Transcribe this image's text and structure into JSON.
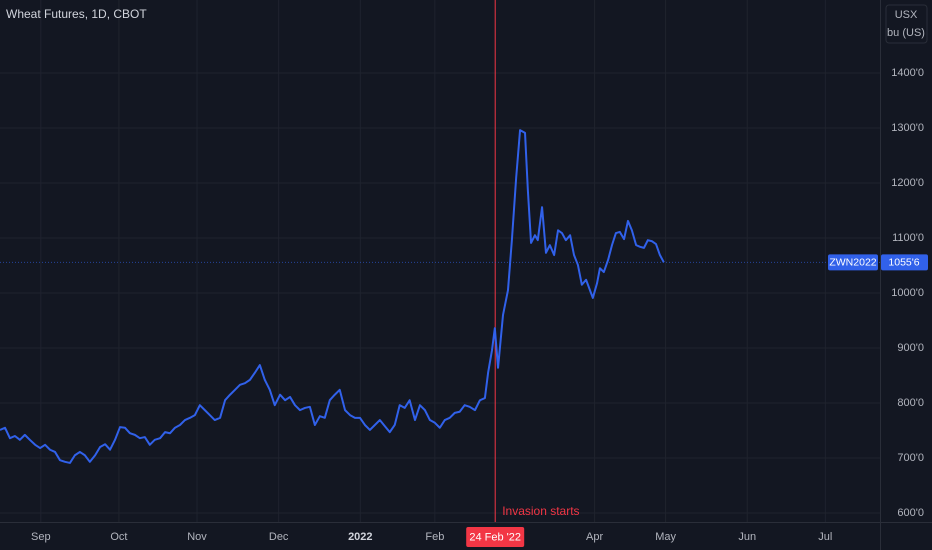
{
  "chart_data": {
    "type": "line",
    "title": "Wheat Futures, 1D, CBOT",
    "currency": "USX",
    "unit": "bu (US)",
    "background": "#131722",
    "grid": true,
    "grid_color": "#1f232e",
    "xlim": [
      -11.5,
      236.4
    ],
    "ylim": [
      583.6,
      1532.7
    ],
    "xticks": [
      {
        "value": 0,
        "label": "Sep"
      },
      {
        "value": 22,
        "label": "Oct"
      },
      {
        "value": 44,
        "label": "Nov"
      },
      {
        "value": 67,
        "label": "Dec"
      },
      {
        "value": 90,
        "label": "2022"
      },
      {
        "value": 111,
        "label": "Feb"
      },
      {
        "value": 156,
        "label": "Apr"
      },
      {
        "value": 176,
        "label": "May"
      },
      {
        "value": 199,
        "label": "Jun"
      },
      {
        "value": 221,
        "label": "Jul"
      }
    ],
    "yticks": [
      {
        "value": 600,
        "label": "600'0"
      },
      {
        "value": 700,
        "label": "700'0"
      },
      {
        "value": 800,
        "label": "800'0"
      },
      {
        "value": 900,
        "label": "900'0"
      },
      {
        "value": 1000,
        "label": "1000'0"
      },
      {
        "value": 1100,
        "label": "1100'0"
      },
      {
        "value": 1200,
        "label": "1200'0"
      },
      {
        "value": 1300,
        "label": "1300'0"
      },
      {
        "value": 1400,
        "label": "1400'0"
      }
    ],
    "annotation": {
      "text": "Invasion starts",
      "x": 128,
      "label": "24 Feb '22",
      "color": "#f23645"
    },
    "series": [
      {
        "name": "ZWN2022",
        "color": "#3161ea",
        "last_label": "1055'6",
        "x": [
          -11.5,
          -10.1,
          -8.7,
          -7.3,
          -5.9,
          -4.5,
          -3.1,
          -1.6,
          -0.2,
          1.2,
          2.6,
          4.0,
          5.4,
          6.8,
          8.2,
          9.6,
          11.0,
          12.4,
          13.8,
          15.3,
          16.7,
          18.1,
          19.5,
          20.9,
          22.3,
          23.7,
          25.1,
          26.5,
          27.9,
          29.3,
          30.7,
          32.1,
          33.6,
          35.0,
          36.4,
          37.8,
          39.2,
          40.6,
          42.0,
          43.4,
          44.8,
          46.2,
          47.6,
          49.0,
          50.5,
          51.9,
          53.3,
          54.7,
          56.1,
          57.5,
          58.9,
          60.3,
          61.7,
          63.1,
          64.5,
          65.9,
          67.4,
          68.8,
          70.2,
          71.6,
          73.0,
          74.4,
          75.8,
          77.2,
          78.6,
          80.0,
          81.4,
          82.8,
          84.2,
          85.7,
          87.1,
          88.5,
          89.9,
          91.3,
          92.7,
          94.1,
          95.5,
          96.9,
          98.3,
          99.7,
          101.1,
          102.5,
          103.9,
          105.4,
          106.8,
          108.2,
          109.6,
          111.0,
          112.4,
          113.8,
          115.2,
          116.6,
          118.0,
          119.4,
          120.8,
          122.3,
          123.7,
          125.1,
          126.0,
          127.1,
          127.9,
          128.8,
          130.2,
          131.6,
          132.7,
          133.9,
          135.0,
          136.4,
          137.2,
          138.1,
          139.2,
          140.0,
          141.2,
          142.3,
          143.4,
          144.6,
          145.7,
          146.8,
          147.9,
          149.1,
          150.2,
          151.3,
          152.4,
          153.6,
          154.7,
          155.5,
          156.7,
          157.5,
          158.6,
          159.8,
          160.9,
          162.0,
          163.1,
          164.3,
          165.4,
          166.5,
          167.7,
          168.8,
          169.9,
          171.0,
          172.2,
          173.3,
          174.4,
          175.5
        ],
        "values": [
          751,
          755,
          736,
          740,
          733,
          742,
          733,
          724,
          718,
          724,
          715,
          711,
          696,
          693,
          691,
          705,
          711,
          705,
          693,
          705,
          720,
          725,
          715,
          733,
          756,
          755,
          745,
          742,
          736,
          738,
          724,
          733,
          736,
          747,
          745,
          755,
          760,
          769,
          773,
          778,
          796,
          787,
          778,
          769,
          773,
          805,
          815,
          824,
          833,
          836,
          842,
          855,
          869,
          842,
          824,
          796,
          815,
          805,
          811,
          796,
          787,
          791,
          793,
          760,
          776,
          773,
          805,
          815,
          824,
          787,
          778,
          773,
          773,
          760,
          751,
          760,
          769,
          758,
          747,
          760,
          796,
          791,
          805,
          769,
          796,
          787,
          769,
          764,
          755,
          769,
          773,
          782,
          784,
          796,
          793,
          787,
          805,
          809,
          855,
          896,
          936,
          864,
          960,
          1005,
          1096,
          1209,
          1296,
          1291,
          1187,
          1091,
          1105,
          1096,
          1156,
          1073,
          1087,
          1069,
          1114,
          1109,
          1096,
          1105,
          1069,
          1051,
          1015,
          1024,
          1005,
          991,
          1018,
          1045,
          1038,
          1060,
          1087,
          1109,
          1111,
          1098,
          1131,
          1114,
          1087,
          1084,
          1082,
          1096,
          1094,
          1089,
          1069,
          1055.75
        ]
      }
    ]
  }
}
